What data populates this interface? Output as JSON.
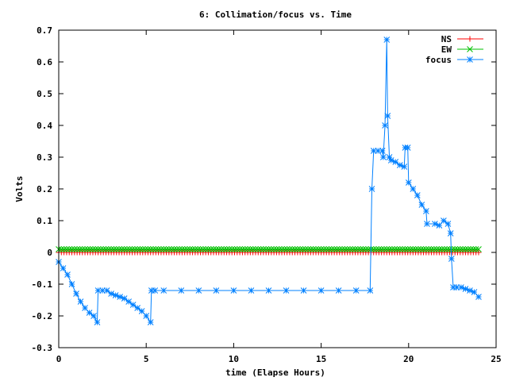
{
  "chart_data": {
    "type": "line",
    "title": "6: Collimation/focus vs. Time",
    "xlabel": "time (Elapse Hours)",
    "ylabel": "Volts",
    "xlim": [
      0,
      25
    ],
    "ylim": [
      -0.3,
      0.7
    ],
    "xticks": [
      {
        "v": 0,
        "label": "0"
      },
      {
        "v": 5,
        "label": "5"
      },
      {
        "v": 10,
        "label": "10"
      },
      {
        "v": 15,
        "label": "15"
      },
      {
        "v": 20,
        "label": "20"
      },
      {
        "v": 25,
        "label": "25"
      }
    ],
    "yticks": [
      {
        "v": -0.3,
        "label": "-0.3"
      },
      {
        "v": -0.2,
        "label": "-0.2"
      },
      {
        "v": -0.1,
        "label": "-0.1"
      },
      {
        "v": 0,
        "label": "0"
      },
      {
        "v": 0.1,
        "label": "0.1"
      },
      {
        "v": 0.2,
        "label": "0.2"
      },
      {
        "v": 0.3,
        "label": "0.3"
      },
      {
        "v": 0.4,
        "label": "0.4"
      },
      {
        "v": 0.5,
        "label": "0.5"
      },
      {
        "v": 0.6,
        "label": "0.6"
      },
      {
        "v": 0.7,
        "label": "0.7"
      }
    ],
    "grid": false,
    "legend_position": "top-right",
    "series": [
      {
        "name": "NS",
        "color": "#ff0000",
        "marker": "plus",
        "x_range": [
          0,
          24
        ],
        "constant_y": 0.0
      },
      {
        "name": "EW",
        "color": "#00c000",
        "marker": "cross",
        "x_range": [
          0,
          24
        ],
        "constant_y": 0.01
      },
      {
        "name": "focus",
        "color": "#0080ff",
        "marker": "star",
        "points": [
          [
            0.0,
            -0.03
          ],
          [
            0.25,
            -0.05
          ],
          [
            0.5,
            -0.07
          ],
          [
            0.75,
            -0.1
          ],
          [
            1.0,
            -0.13
          ],
          [
            1.25,
            -0.155
          ],
          [
            1.5,
            -0.175
          ],
          [
            1.75,
            -0.19
          ],
          [
            2.0,
            -0.2
          ],
          [
            2.2,
            -0.22
          ],
          [
            2.25,
            -0.12
          ],
          [
            2.5,
            -0.12
          ],
          [
            2.75,
            -0.12
          ],
          [
            3.0,
            -0.13
          ],
          [
            3.25,
            -0.135
          ],
          [
            3.5,
            -0.14
          ],
          [
            3.75,
            -0.145
          ],
          [
            4.0,
            -0.155
          ],
          [
            4.25,
            -0.165
          ],
          [
            4.5,
            -0.175
          ],
          [
            4.75,
            -0.185
          ],
          [
            5.0,
            -0.2
          ],
          [
            5.25,
            -0.22
          ],
          [
            5.3,
            -0.12
          ],
          [
            5.5,
            -0.12
          ],
          [
            6.0,
            -0.12
          ],
          [
            7.0,
            -0.12
          ],
          [
            8.0,
            -0.12
          ],
          [
            9.0,
            -0.12
          ],
          [
            10.0,
            -0.12
          ],
          [
            11.0,
            -0.12
          ],
          [
            12.0,
            -0.12
          ],
          [
            13.0,
            -0.12
          ],
          [
            14.0,
            -0.12
          ],
          [
            15.0,
            -0.12
          ],
          [
            16.0,
            -0.12
          ],
          [
            17.0,
            -0.12
          ],
          [
            17.8,
            -0.12
          ],
          [
            17.9,
            0.2
          ],
          [
            18.0,
            0.32
          ],
          [
            18.25,
            0.32
          ],
          [
            18.5,
            0.32
          ],
          [
            18.55,
            0.3
          ],
          [
            18.65,
            0.4
          ],
          [
            18.75,
            0.67
          ],
          [
            18.8,
            0.43
          ],
          [
            18.9,
            0.3
          ],
          [
            19.0,
            0.29
          ],
          [
            19.25,
            0.285
          ],
          [
            19.5,
            0.275
          ],
          [
            19.75,
            0.27
          ],
          [
            19.8,
            0.33
          ],
          [
            19.95,
            0.33
          ],
          [
            20.0,
            0.22
          ],
          [
            20.25,
            0.2
          ],
          [
            20.5,
            0.18
          ],
          [
            20.75,
            0.15
          ],
          [
            21.0,
            0.13
          ],
          [
            21.05,
            0.09
          ],
          [
            21.5,
            0.09
          ],
          [
            21.75,
            0.085
          ],
          [
            22.0,
            0.1
          ],
          [
            22.25,
            0.09
          ],
          [
            22.4,
            0.06
          ],
          [
            22.45,
            -0.02
          ],
          [
            22.55,
            -0.11
          ],
          [
            22.75,
            -0.11
          ],
          [
            23.0,
            -0.11
          ],
          [
            23.25,
            -0.115
          ],
          [
            23.5,
            -0.12
          ],
          [
            23.75,
            -0.125
          ],
          [
            24.0,
            -0.14
          ]
        ]
      }
    ]
  }
}
